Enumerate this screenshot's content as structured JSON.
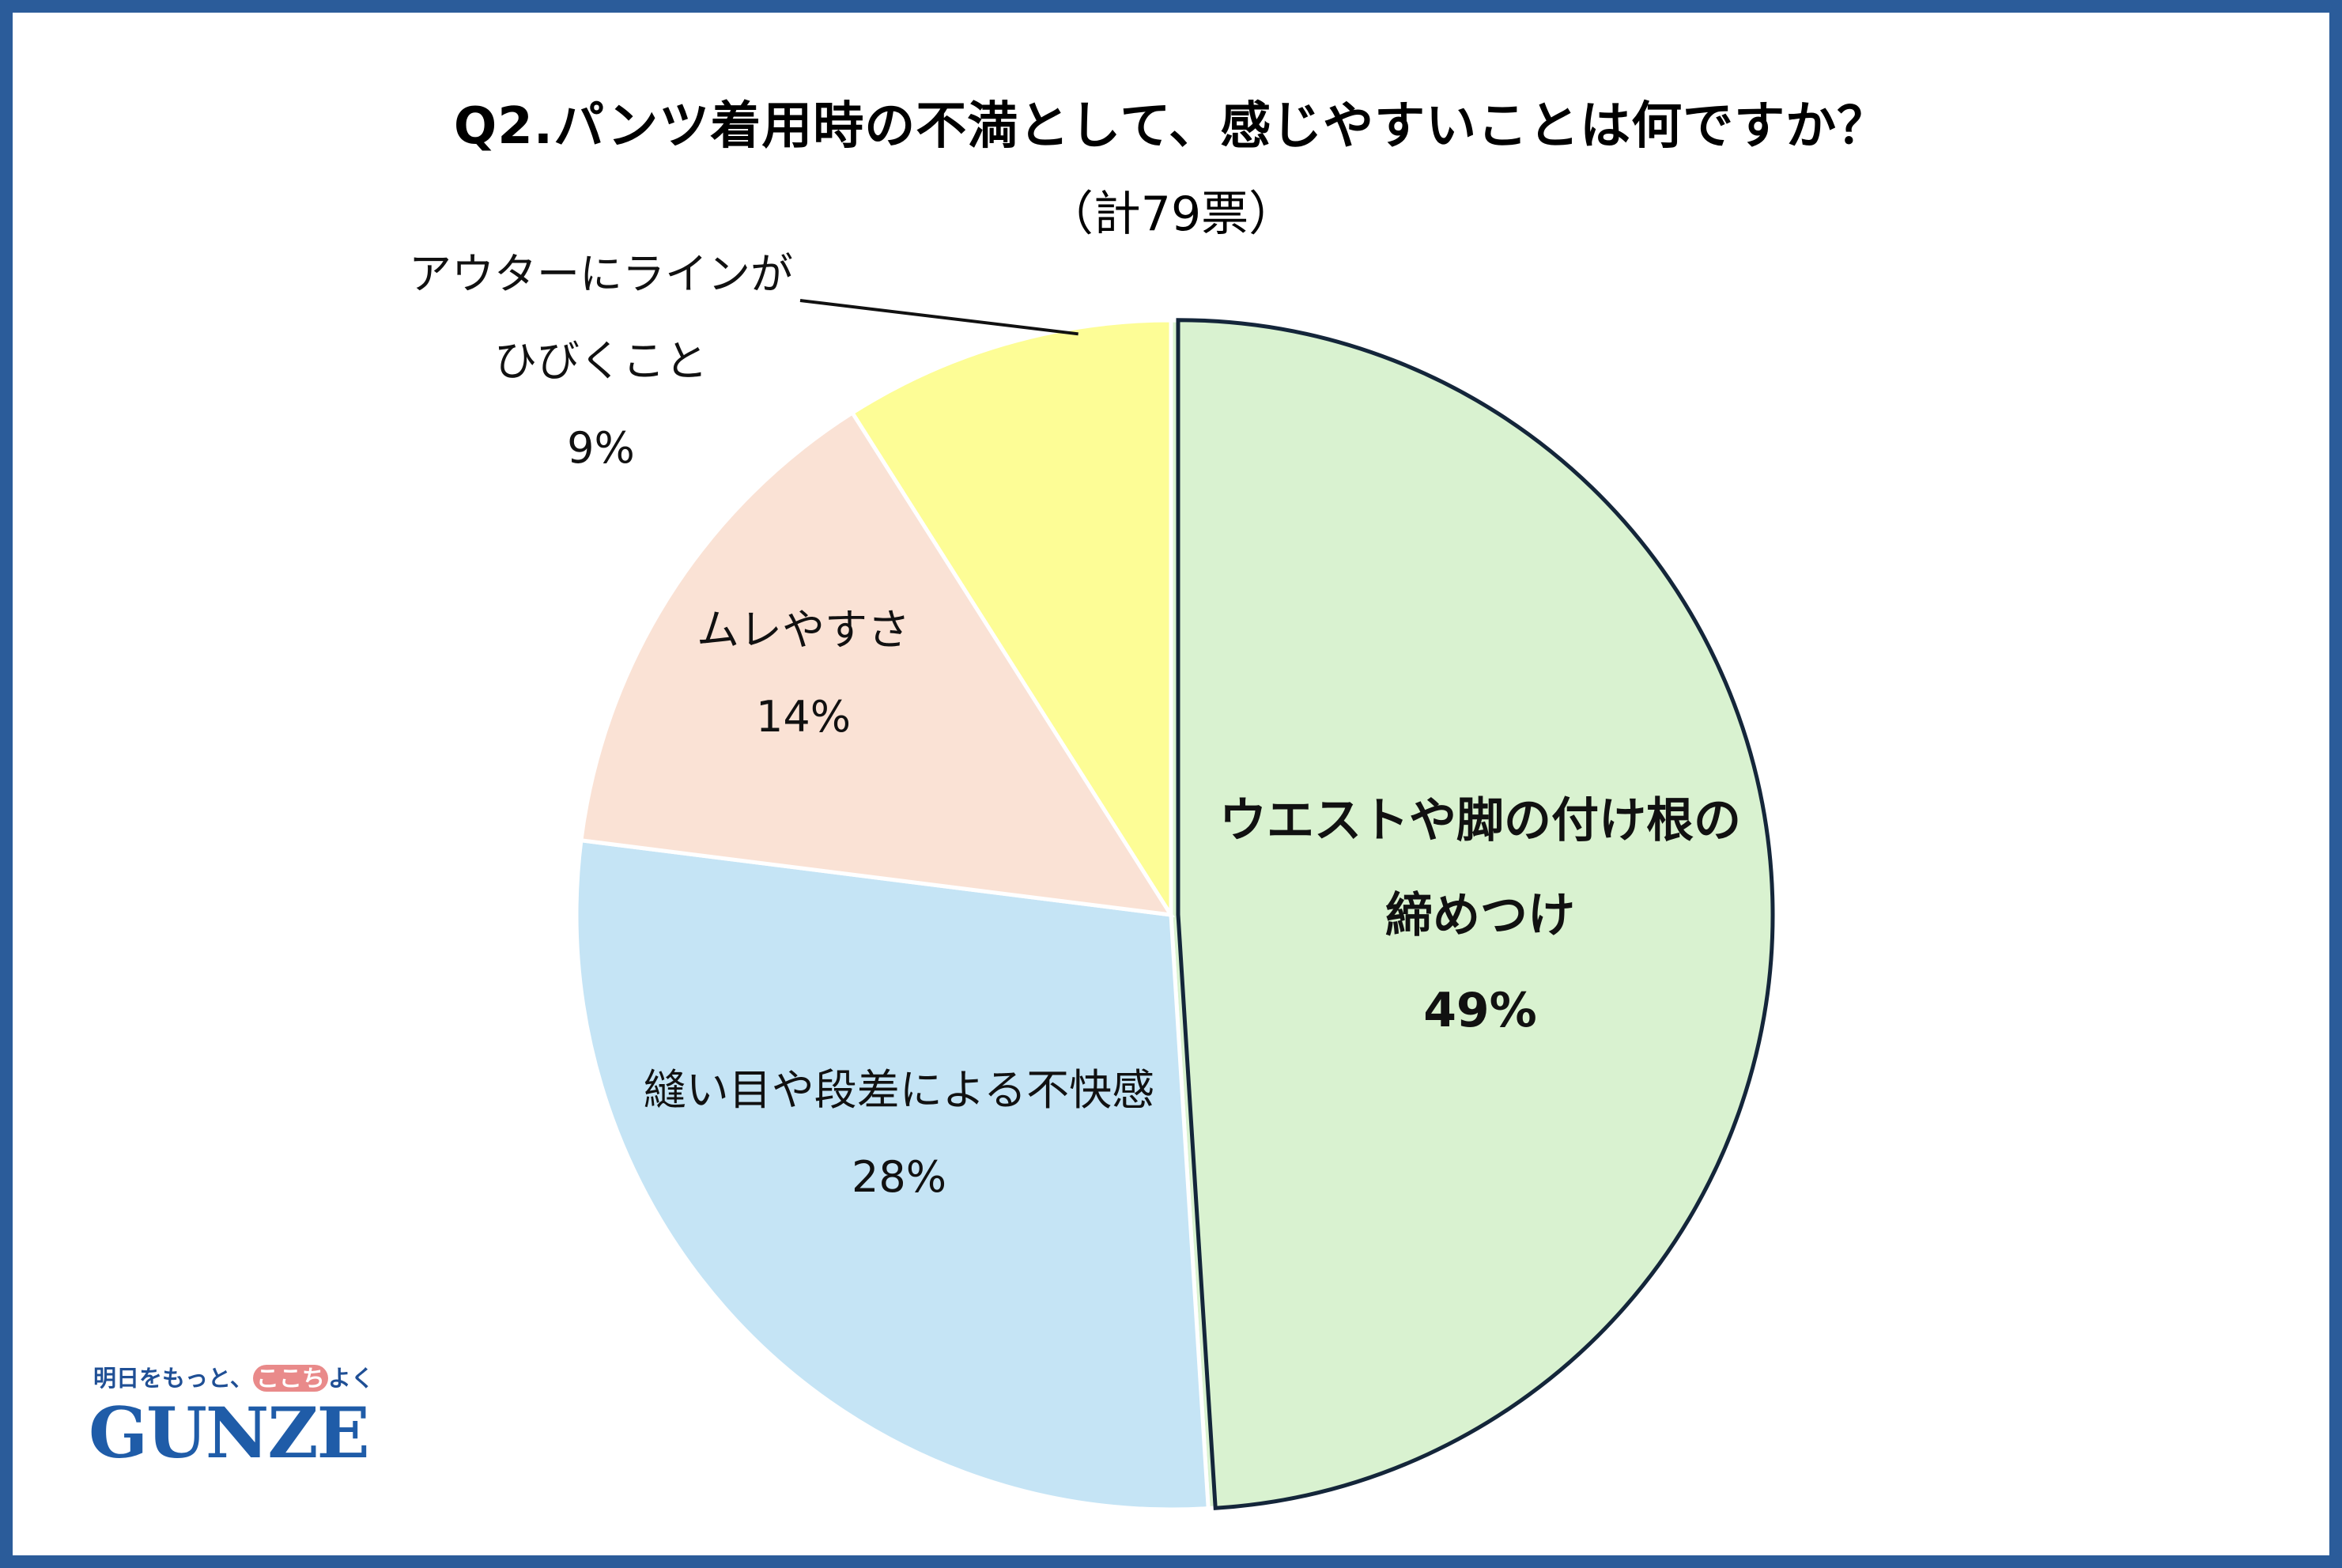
{
  "chart_data": {
    "type": "pie",
    "title": "Q2.パンツ着用時の不満として、感じやすいことは何ですか？",
    "subtitle": "（計79票）",
    "total_votes": 79,
    "slices": [
      {
        "label_lines": [
          "ウエストや脚の付け根の",
          "締めつけ"
        ],
        "value": 49,
        "value_label": "49%",
        "color": "#d9f2d0",
        "emphasized": true
      },
      {
        "label_lines": [
          "縫い目や段差による不快感"
        ],
        "value": 28,
        "value_label": "28%",
        "color": "#c5e4f5",
        "emphasized": false
      },
      {
        "label_lines": [
          "ムレやすさ"
        ],
        "value": 14,
        "value_label": "14%",
        "color": "#fae2d5",
        "emphasized": false
      },
      {
        "label_lines": [
          "アウターにラインが",
          "ひびくこと"
        ],
        "value": 9,
        "value_label": "9%",
        "color": "#fdfd96",
        "emphasized": false,
        "leader_line": true
      }
    ],
    "start_angle": "12 o'clock",
    "direction": "clockwise",
    "legend": "none"
  },
  "logo": {
    "tagline_parts": [
      "明日をもっと、",
      "ここち",
      "よく"
    ],
    "wordmark": "GUNZE"
  },
  "colors": {
    "frame": "#2b5c9a",
    "slice_border": "#ffffff",
    "emphasis_border": "#14263a",
    "logo": "#1f5ca8",
    "logo_highlight": "#e98a8a"
  }
}
